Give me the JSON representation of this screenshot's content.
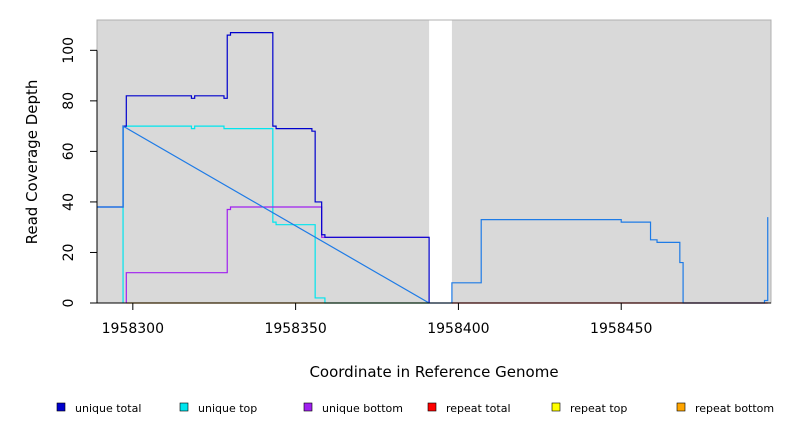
{
  "chart_data": {
    "type": "line",
    "title": "",
    "xlabel": "Coordinate in Reference Genome",
    "ylabel": "Read Coverage Depth",
    "xlim": [
      1958289,
      1958496
    ],
    "ylim": [
      0,
      112
    ],
    "x_ticks": [
      1958300,
      1958350,
      1958400,
      1958450
    ],
    "x_tick_labels": [
      "1958300",
      "1958350",
      "1958400",
      "1958450"
    ],
    "y_ticks": [
      0,
      20,
      40,
      60,
      80,
      100
    ],
    "y_tick_labels": [
      "0",
      "20",
      "40",
      "60",
      "80",
      "100"
    ],
    "grid": false,
    "background": "#d9d9d9",
    "gap_region": [
      1958391,
      1958398
    ],
    "legend_position": "bottom",
    "step": true,
    "series": [
      {
        "name": "unique total",
        "color": "#0000cd",
        "points": [
          [
            1958289,
            38
          ],
          [
            1958297,
            38
          ],
          [
            1958297,
            70
          ],
          [
            1958298,
            70
          ],
          [
            1958298,
            82
          ],
          [
            1958318,
            82
          ],
          [
            1958318,
            81
          ],
          [
            1958319,
            81
          ],
          [
            1958319,
            82
          ],
          [
            1958328,
            82
          ],
          [
            1958328,
            81
          ],
          [
            1958329,
            81
          ],
          [
            1958329,
            106
          ],
          [
            1958330,
            106
          ],
          [
            1958330,
            107
          ],
          [
            1958343,
            107
          ],
          [
            1958343,
            70
          ],
          [
            1958344,
            70
          ],
          [
            1958344,
            69
          ],
          [
            1958355,
            69
          ],
          [
            1958355,
            68
          ],
          [
            1958356,
            68
          ],
          [
            1958356,
            40
          ],
          [
            1958358,
            40
          ],
          [
            1958358,
            27
          ],
          [
            1958359,
            27
          ],
          [
            1958359,
            26
          ],
          [
            1958391,
            26
          ],
          [
            1958391,
            0
          ]
        ]
      },
      {
        "name": "unique top",
        "color": "#00e5ee",
        "points": [
          [
            1958297,
            0
          ],
          [
            1958297,
            70
          ],
          [
            1958318,
            70
          ],
          [
            1958318,
            69
          ],
          [
            1958319,
            69
          ],
          [
            1958319,
            70
          ],
          [
            1958328,
            70
          ],
          [
            1958328,
            69
          ],
          [
            1958343,
            69
          ],
          [
            1958343,
            32
          ],
          [
            1958344,
            32
          ],
          [
            1958344,
            31
          ],
          [
            1958356,
            31
          ],
          [
            1958356,
            2
          ],
          [
            1958359,
            2
          ],
          [
            1958359,
            0
          ],
          [
            1958391,
            0
          ]
        ]
      },
      {
        "name": "unique bottom",
        "color": "#a020f0",
        "points": [
          [
            1958298,
            0
          ],
          [
            1958298,
            12
          ],
          [
            1958329,
            12
          ],
          [
            1958329,
            37
          ],
          [
            1958330,
            37
          ],
          [
            1958330,
            38
          ],
          [
            1958358,
            38
          ],
          [
            1958358,
            26
          ],
          [
            1958391,
            26
          ]
        ]
      },
      {
        "name": "repeat total",
        "color": "#ff0000",
        "points": [
          [
            1958398,
            0
          ],
          [
            1958495,
            0
          ]
        ]
      },
      {
        "name": "repeat top",
        "color": "#ffff00",
        "points": []
      },
      {
        "name": "repeat bottom",
        "color": "#ffa500",
        "points": [
          [
            1958298,
            0
          ],
          [
            1958391,
            0
          ]
        ]
      },
      {
        "name": "",
        "color": "#1e7be6",
        "points": [
          [
            1958289,
            38
          ],
          [
            1958297,
            38
          ],
          [
            1958297,
            70
          ],
          [
            1958391,
            0
          ],
          [
            1958398,
            0
          ],
          [
            1958398,
            8
          ],
          [
            1958407,
            8
          ],
          [
            1958407,
            33
          ],
          [
            1958450,
            33
          ],
          [
            1958450,
            32
          ],
          [
            1958459,
            32
          ],
          [
            1958459,
            25
          ],
          [
            1958461,
            25
          ],
          [
            1958461,
            24
          ],
          [
            1958468,
            24
          ],
          [
            1958468,
            16
          ],
          [
            1958469,
            16
          ],
          [
            1958469,
            0
          ],
          [
            1958494,
            0
          ],
          [
            1958494,
            1
          ],
          [
            1958495,
            1
          ],
          [
            1958495,
            34
          ]
        ]
      }
    ]
  }
}
